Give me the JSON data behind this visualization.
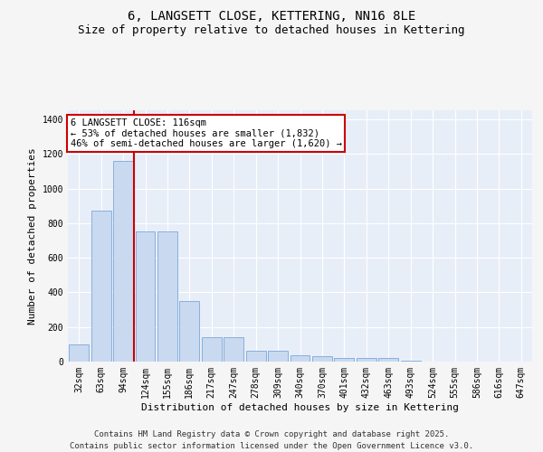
{
  "title_line1": "6, LANGSETT CLOSE, KETTERING, NN16 8LE",
  "title_line2": "Size of property relative to detached houses in Kettering",
  "xlabel": "Distribution of detached houses by size in Kettering",
  "ylabel": "Number of detached properties",
  "categories": [
    "32sqm",
    "63sqm",
    "94sqm",
    "124sqm",
    "155sqm",
    "186sqm",
    "217sqm",
    "247sqm",
    "278sqm",
    "309sqm",
    "340sqm",
    "370sqm",
    "401sqm",
    "432sqm",
    "463sqm",
    "493sqm",
    "524sqm",
    "555sqm",
    "586sqm",
    "616sqm",
    "647sqm"
  ],
  "values": [
    100,
    870,
    1160,
    750,
    750,
    350,
    140,
    140,
    65,
    65,
    35,
    30,
    20,
    20,
    20,
    5,
    0,
    0,
    0,
    0,
    0
  ],
  "bar_color": "#c9d9f0",
  "bar_edgecolor": "#7aa8d8",
  "vline_x": 2.5,
  "vline_color": "#cc0000",
  "annotation_text": "6 LANGSETT CLOSE: 116sqm\n← 53% of detached houses are smaller (1,832)\n46% of semi-detached houses are larger (1,620) →",
  "annotation_box_edgecolor": "#cc0000",
  "ylim": [
    0,
    1450
  ],
  "yticks": [
    0,
    200,
    400,
    600,
    800,
    1000,
    1200,
    1400
  ],
  "bg_color": "#e8eef8",
  "fig_bg_color": "#f5f5f5",
  "grid_color": "#ffffff",
  "footer_line1": "Contains HM Land Registry data © Crown copyright and database right 2025.",
  "footer_line2": "Contains public sector information licensed under the Open Government Licence v3.0.",
  "title_fontsize": 10,
  "subtitle_fontsize": 9,
  "axis_label_fontsize": 8,
  "tick_fontsize": 7,
  "annotation_fontsize": 7.5,
  "footer_fontsize": 6.5
}
